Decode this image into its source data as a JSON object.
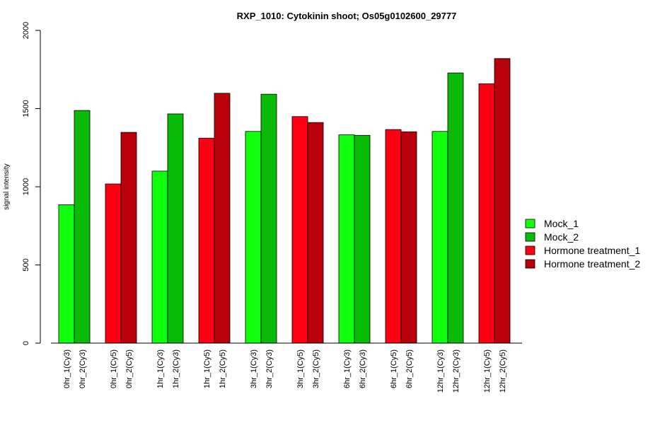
{
  "chart_data": {
    "type": "bar",
    "title": "RXP_1010: Cytokinin shoot; Os05g0102600_29777",
    "xlabel": "",
    "ylabel": "signal intensity",
    "ylim": [
      0,
      2000
    ],
    "yticks": [
      "0",
      "500",
      "1000",
      "1500",
      "2000"
    ],
    "legend_position": "right",
    "series": [
      {
        "name": "Mock_1",
        "color": "#11ff0e"
      },
      {
        "name": "Mock_2",
        "color": "#0aba08"
      },
      {
        "name": "Hormone treatment_1",
        "color": "#ff0013"
      },
      {
        "name": "Hormone treatment_2",
        "color": "#b8000b"
      }
    ],
    "groups": [
      {
        "bars": [
          {
            "label": "0hr_1(Cy3)",
            "value": 885,
            "series": 0
          },
          {
            "label": "0hr_2(Cy3)",
            "value": 1488,
            "series": 1
          }
        ]
      },
      {
        "bars": [
          {
            "label": "0hr_1(Cy5)",
            "value": 1018,
            "series": 2
          },
          {
            "label": "0hr_2(Cy5)",
            "value": 1348,
            "series": 3
          }
        ]
      },
      {
        "bars": [
          {
            "label": "1hr_1(Cy3)",
            "value": 1100,
            "series": 0
          },
          {
            "label": "1hr_2(Cy3)",
            "value": 1466,
            "series": 1
          }
        ]
      },
      {
        "bars": [
          {
            "label": "1hr_1(Cy5)",
            "value": 1311,
            "series": 2
          },
          {
            "label": "1hr_2(Cy5)",
            "value": 1598,
            "series": 3
          }
        ]
      },
      {
        "bars": [
          {
            "label": "3hr_1(Cy3)",
            "value": 1354,
            "series": 0
          },
          {
            "label": "3hr_2(Cy3)",
            "value": 1592,
            "series": 1
          }
        ]
      },
      {
        "bars": [
          {
            "label": "3hr_1(Cy5)",
            "value": 1449,
            "series": 2
          },
          {
            "label": "3hr_2(Cy5)",
            "value": 1411,
            "series": 3
          }
        ]
      },
      {
        "bars": [
          {
            "label": "6hr_1(Cy3)",
            "value": 1332,
            "series": 0
          },
          {
            "label": "6hr_2(Cy3)",
            "value": 1329,
            "series": 1
          }
        ]
      },
      {
        "bars": [
          {
            "label": "6hr_1(Cy5)",
            "value": 1366,
            "series": 2
          },
          {
            "label": "6hr_2(Cy5)",
            "value": 1352,
            "series": 3
          }
        ]
      },
      {
        "bars": [
          {
            "label": "12hr_1(Cy3)",
            "value": 1354,
            "series": 0
          },
          {
            "label": "12hr_2(Cy3)",
            "value": 1728,
            "series": 1
          }
        ]
      },
      {
        "bars": [
          {
            "label": "12hr_1(Cy5)",
            "value": 1659,
            "series": 2
          },
          {
            "label": "12hr_2(Cy5)",
            "value": 1820,
            "series": 3
          }
        ]
      }
    ]
  }
}
